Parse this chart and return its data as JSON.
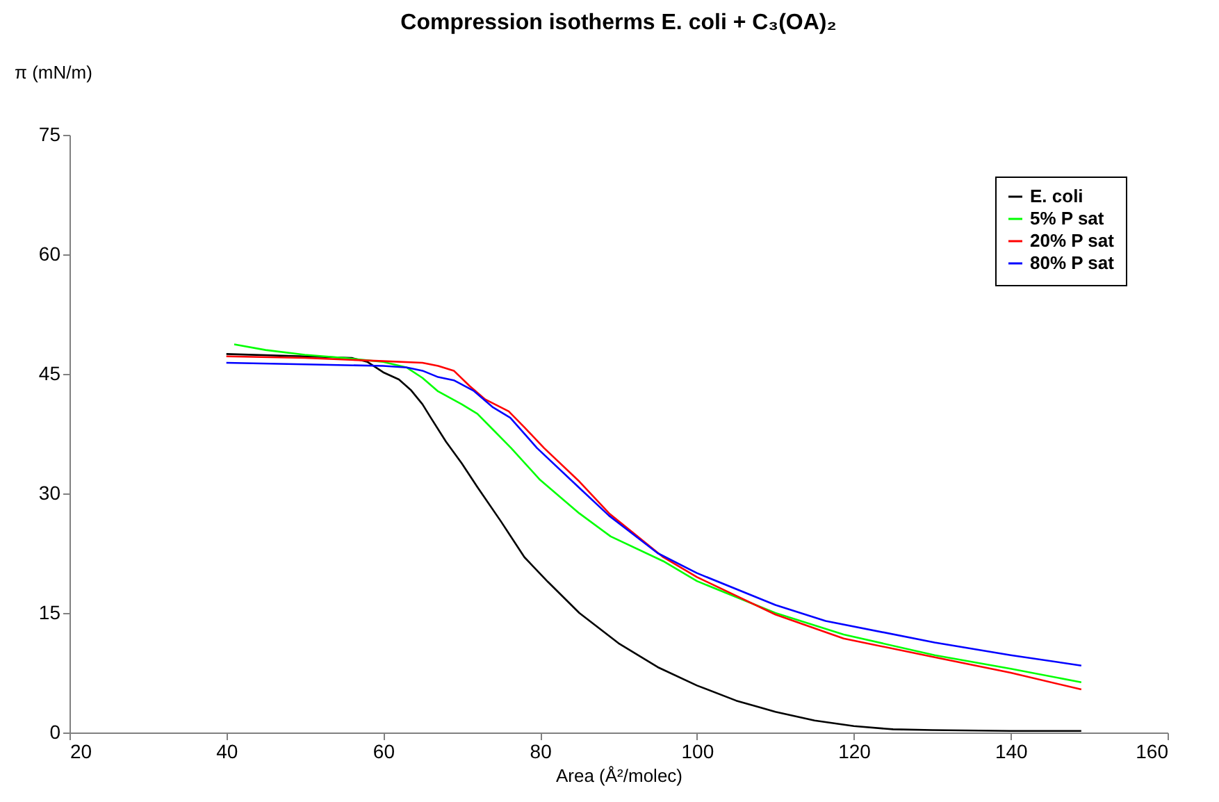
{
  "chart_data": {
    "type": "line",
    "title": "Compression isotherms E. coli + C₃(OA)₂",
    "xlabel": "Area (Å²/molec)",
    "ylabel": "π (mN/m)",
    "xlim": [
      20,
      160
    ],
    "xticks": [
      20,
      40,
      60,
      80,
      100,
      120,
      140,
      160
    ],
    "ylim": [
      0,
      75
    ],
    "yticks": [
      0,
      15,
      30,
      45,
      60,
      75
    ],
    "grid": false,
    "legend": "top right",
    "marker": "none",
    "line_style": "solid",
    "series": [
      {
        "name": "E. coli",
        "color": "#000000",
        "x": [
          40,
          50,
          56,
          58,
          60,
          62,
          63.5,
          65,
          66,
          68,
          70,
          72,
          75,
          78,
          81,
          85,
          90,
          95,
          100,
          105,
          110,
          115,
          120,
          125,
          130,
          140,
          149
        ],
        "values": [
          47.5,
          47.2,
          47,
          46.5,
          45.2,
          44.3,
          43,
          41.2,
          39.6,
          36.5,
          33.8,
          30.8,
          26.5,
          22,
          18.9,
          15,
          11.2,
          8.2,
          5.9,
          4,
          2.6,
          1.5,
          0.8,
          0.4,
          0.3,
          0.2,
          0.2
        ]
      },
      {
        "name": "5% P sat",
        "color": "#00ff00",
        "x": [
          41,
          45,
          50,
          55,
          60,
          63,
          65,
          67,
          70,
          72,
          74,
          76.3,
          80,
          85,
          89,
          95.7,
          100,
          110,
          118.7,
          130.3,
          140,
          149
        ],
        "values": [
          48.7,
          48,
          47.4,
          47,
          46.5,
          45.8,
          44.5,
          42.8,
          41.2,
          40,
          38,
          35.7,
          31.7,
          27.5,
          24.6,
          21.5,
          19,
          15,
          12.3,
          9.7,
          8,
          6.3
        ]
      },
      {
        "name": "20% P sat",
        "color": "#ff0000",
        "x": [
          40,
          50,
          60,
          65,
          67,
          69,
          71,
          73,
          76,
          78,
          80.5,
          85,
          88.8,
          95.7,
          100,
          110,
          118.7,
          130,
          140,
          149
        ],
        "values": [
          47.2,
          47,
          46.6,
          46.4,
          46,
          45.4,
          43.5,
          41.8,
          40.3,
          38.3,
          35.7,
          31.5,
          27.5,
          22,
          19.5,
          14.8,
          11.8,
          9.5,
          7.5,
          5.4
        ]
      },
      {
        "name": "80% P sat",
        "color": "#0000ff",
        "x": [
          40,
          50,
          60,
          63,
          65,
          67,
          69,
          71.5,
          74,
          76.2,
          79.6,
          85,
          88.8,
          95,
          100,
          110,
          116.4,
          130.3,
          140,
          149
        ],
        "values": [
          46.4,
          46.2,
          46,
          45.8,
          45.4,
          44.6,
          44.2,
          42.9,
          40.8,
          39.5,
          35.7,
          30.7,
          27.2,
          22.5,
          20,
          16,
          14,
          11.3,
          9.7,
          8.4
        ]
      }
    ]
  }
}
